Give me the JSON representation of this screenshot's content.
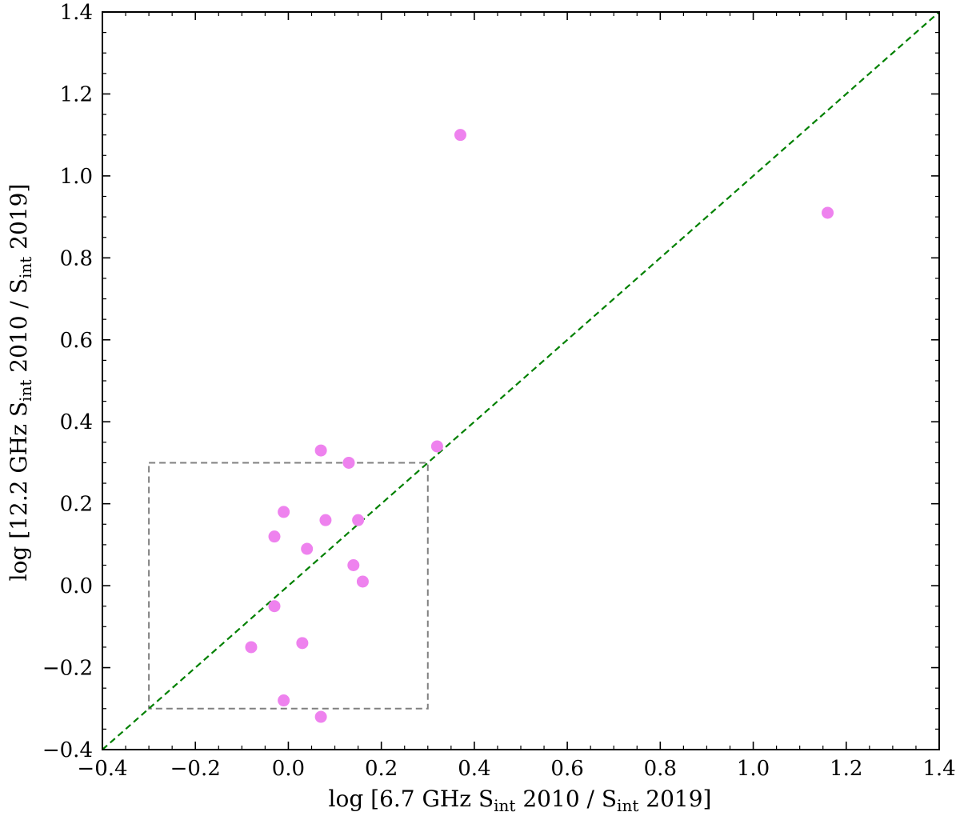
{
  "chart_data": {
    "type": "scatter",
    "title": "",
    "xlabel": {
      "pre": "log [6.7 GHz S",
      "sub1": "int",
      "mid": " 2010 / S",
      "sub2": "int",
      "post": " 2019]"
    },
    "ylabel": {
      "pre": "log [12.2 GHz S",
      "sub1": "int",
      "mid": " 2010 / S",
      "sub2": "int",
      "post": " 2019]"
    },
    "xlim": [
      -0.4,
      1.4
    ],
    "ylim": [
      -0.4,
      1.4
    ],
    "xticks": [
      -0.4,
      -0.2,
      0.0,
      0.2,
      0.4,
      0.6,
      0.8,
      1.0,
      1.2,
      1.4
    ],
    "yticks": [
      -0.4,
      -0.2,
      0.0,
      0.2,
      0.4,
      0.6,
      0.8,
      1.0,
      1.2,
      1.4
    ],
    "xtick_labels": [
      "−0.4",
      "−0.2",
      "0.0",
      "0.2",
      "0.4",
      "0.6",
      "0.8",
      "1.0",
      "1.2",
      "1.4"
    ],
    "ytick_labels": [
      "−0.4",
      "−0.2",
      "0.0",
      "0.2",
      "0.4",
      "0.6",
      "0.8",
      "1.0",
      "1.2",
      "1.4"
    ],
    "grid": false,
    "series": [
      {
        "marker_color": "#ee82ee",
        "points": [
          {
            "x": 0.37,
            "y": 1.1
          },
          {
            "x": 1.16,
            "y": 0.91
          },
          {
            "x": 0.32,
            "y": 0.34
          },
          {
            "x": 0.07,
            "y": 0.33
          },
          {
            "x": 0.13,
            "y": 0.3
          },
          {
            "x": -0.01,
            "y": 0.18
          },
          {
            "x": 0.08,
            "y": 0.16
          },
          {
            "x": 0.15,
            "y": 0.16
          },
          {
            "x": -0.03,
            "y": 0.12
          },
          {
            "x": 0.04,
            "y": 0.09
          },
          {
            "x": 0.14,
            "y": 0.05
          },
          {
            "x": 0.16,
            "y": 0.01
          },
          {
            "x": -0.03,
            "y": -0.05
          },
          {
            "x": 0.03,
            "y": -0.14
          },
          {
            "x": -0.08,
            "y": -0.15
          },
          {
            "x": -0.01,
            "y": -0.28
          },
          {
            "x": 0.07,
            "y": -0.32
          }
        ]
      }
    ],
    "reference_line": {
      "x": [
        -0.4,
        1.4
      ],
      "y": [
        -0.4,
        1.4
      ],
      "color": "#008000",
      "style": "dashed"
    },
    "reference_box": {
      "x": [
        -0.3,
        0.3
      ],
      "y": [
        -0.3,
        0.3
      ],
      "color": "#808080",
      "style": "dashed"
    }
  }
}
